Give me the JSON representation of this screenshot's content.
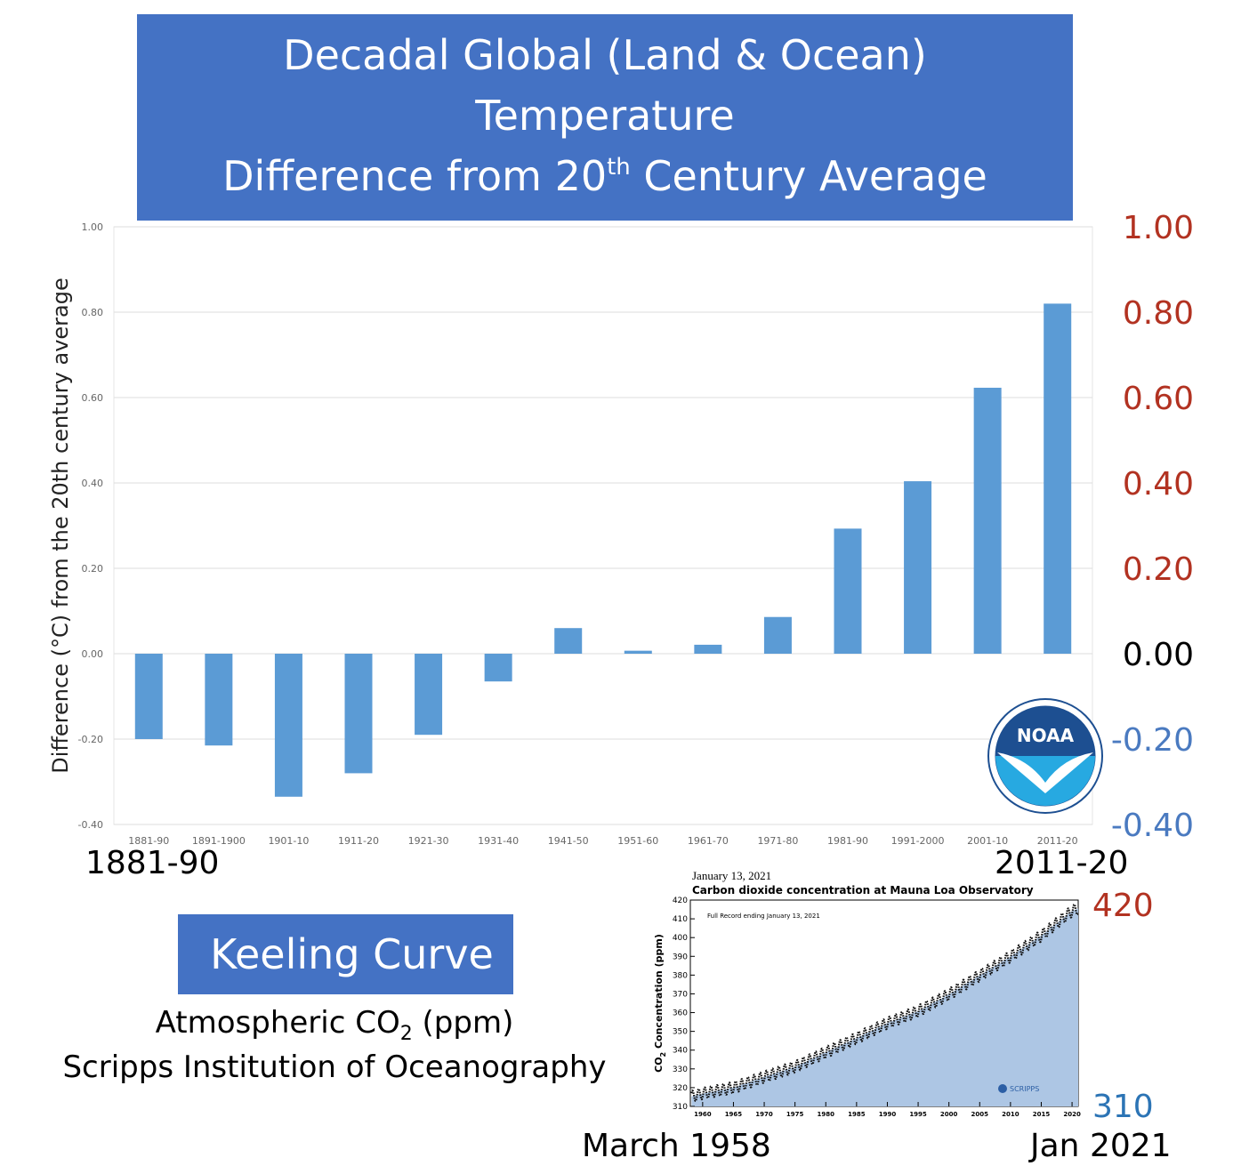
{
  "title": {
    "line1": "Decadal Global (Land & Ocean)",
    "line2": "Temperature",
    "line3_pre": "Difference from 20",
    "line3_sup": "th",
    "line3_post": " Century Average"
  },
  "right_axis": {
    "labels": [
      {
        "text": "1.00",
        "value": 1.0,
        "color": "#b23221"
      },
      {
        "text": "0.80",
        "value": 0.8,
        "color": "#b23221"
      },
      {
        "text": "0.60",
        "value": 0.6,
        "color": "#b23221"
      },
      {
        "text": "0.40",
        "value": 0.4,
        "color": "#b23221"
      },
      {
        "text": "0.20",
        "value": 0.2,
        "color": "#b23221"
      },
      {
        "text": "0.00",
        "value": 0.0,
        "color": "#000000"
      },
      {
        "text": "-0.20",
        "value": -0.2,
        "color": "#4a7ac0"
      },
      {
        "text": "-0.40",
        "value": -0.4,
        "color": "#4a7ac0"
      }
    ]
  },
  "chart_data": [
    {
      "type": "bar",
      "title": "",
      "xlabel": "",
      "ylabel": "Difference (°C) from the 20th century average",
      "ylim": [
        -0.4,
        1.0
      ],
      "yticks": [
        "1.00",
        "0.80",
        "0.60",
        "0.40",
        "0.20",
        "0.00",
        "-0.20",
        "-0.40"
      ],
      "grid": true,
      "bar_color": "#5b9bd5",
      "categories": [
        "1881-90",
        "1891-1900",
        "1901-10",
        "1911-20",
        "1921-30",
        "1931-40",
        "1941-50",
        "1951-60",
        "1961-70",
        "1971-80",
        "1981-90",
        "1991-2000",
        "2001-10",
        "2011-20"
      ],
      "values": [
        -0.2,
        -0.215,
        -0.335,
        -0.28,
        -0.19,
        -0.065,
        0.06,
        0.007,
        0.021,
        0.086,
        0.293,
        0.404,
        0.623,
        0.82
      ]
    },
    {
      "type": "area",
      "title": "Carbon dioxide concentration at Mauna Loa Observatory",
      "date_label": "January 13, 2021",
      "note": "Full Record ending January 13, 2021",
      "ylabel_pre": "CO",
      "ylabel_sub": "2",
      "ylabel_post": " Concentration (ppm)",
      "ylim": [
        310,
        420
      ],
      "xlim": [
        1958,
        2021
      ],
      "yticks": [
        310,
        320,
        330,
        340,
        350,
        360,
        370,
        380,
        390,
        400,
        410,
        420
      ],
      "xticks": [
        1960,
        1965,
        1970,
        1975,
        1980,
        1985,
        1990,
        1995,
        2000,
        2005,
        2010,
        2015,
        2020
      ],
      "fill_color": "#adc6e4",
      "x": [
        1958.2,
        1960,
        1965,
        1970,
        1975,
        1980,
        1985,
        1990,
        1995,
        2000,
        2005,
        2010,
        2015,
        2020,
        2021
      ],
      "y": [
        315.3,
        316.9,
        320.0,
        325.7,
        331.1,
        338.8,
        346.4,
        354.4,
        360.8,
        369.7,
        379.8,
        389.9,
        401.0,
        414.2,
        415.5
      ],
      "seasonal_amplitude_ppm": 3
    }
  ],
  "labels": {
    "start": "1881-90",
    "end": "2011-20",
    "keeling_title": "Keeling Curve",
    "co2_pre": "Atmospheric CO",
    "co2_sub": "2",
    "co2_post": " (ppm)",
    "scripps": "Scripps Institution of Oceanography",
    "co2_top": "420",
    "co2_bottom": "310",
    "date_start": "March 1958",
    "date_end": "Jan 2021",
    "scripps_logo_text": "SCRIPPS",
    "noaa_text": "NOAA"
  }
}
